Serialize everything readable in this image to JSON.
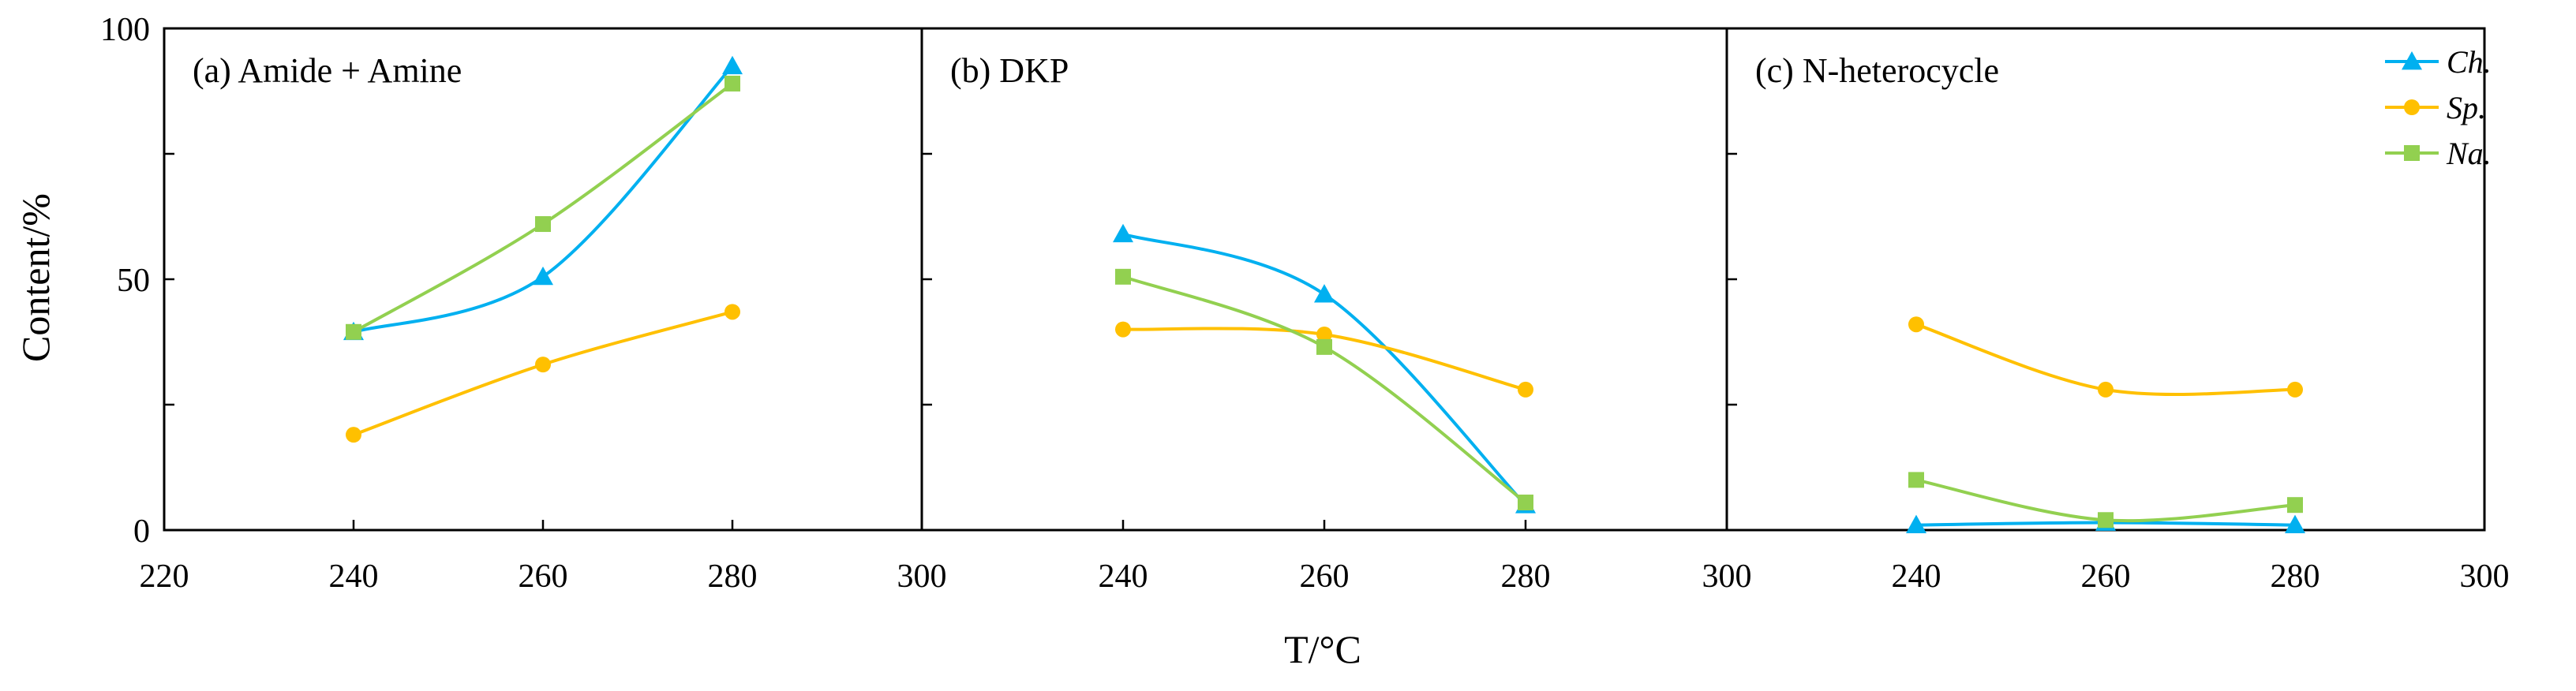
{
  "chart_data": {
    "type": "line",
    "xlabel": "T/°C",
    "ylabel": "Content/%",
    "xlim": [
      220,
      300
    ],
    "ylim": [
      0,
      100
    ],
    "x_ticks": [
      220,
      240,
      260,
      280,
      300
    ],
    "y_ticks": [
      0,
      50,
      100
    ],
    "legend": {
      "position": "top-right",
      "entries": [
        {
          "name": "Ch.",
          "color": "#00b0f0",
          "marker": "triangle"
        },
        {
          "name": "Sp.",
          "color": "#ffc000",
          "marker": "circle"
        },
        {
          "name": "Na.",
          "color": "#92d050",
          "marker": "square"
        }
      ]
    },
    "panels": [
      {
        "title": "(a) Amide + Amine",
        "categories": [
          240,
          260,
          280
        ],
        "series": [
          {
            "name": "Ch.",
            "values": [
              39.5,
              50.5,
              92.5
            ]
          },
          {
            "name": "Sp.",
            "values": [
              19,
              33,
              43.5
            ]
          },
          {
            "name": "Na.",
            "values": [
              39.5,
              61,
              89
            ]
          }
        ]
      },
      {
        "title": "(b) DKP",
        "categories": [
          240,
          260,
          280
        ],
        "series": [
          {
            "name": "Ch.",
            "values": [
              59,
              47,
              5
            ]
          },
          {
            "name": "Sp.",
            "values": [
              40,
              39,
              28
            ]
          },
          {
            "name": "Na.",
            "values": [
              50.5,
              36.5,
              5.5
            ]
          }
        ]
      },
      {
        "title": "(c) N-heterocycle",
        "categories": [
          240,
          260,
          280
        ],
        "series": [
          {
            "name": "Ch.",
            "values": [
              1,
              1.5,
              1
            ]
          },
          {
            "name": "Sp.",
            "values": [
              41,
              28,
              28
            ]
          },
          {
            "name": "Na.",
            "values": [
              10,
              2,
              5
            ]
          }
        ]
      }
    ]
  }
}
